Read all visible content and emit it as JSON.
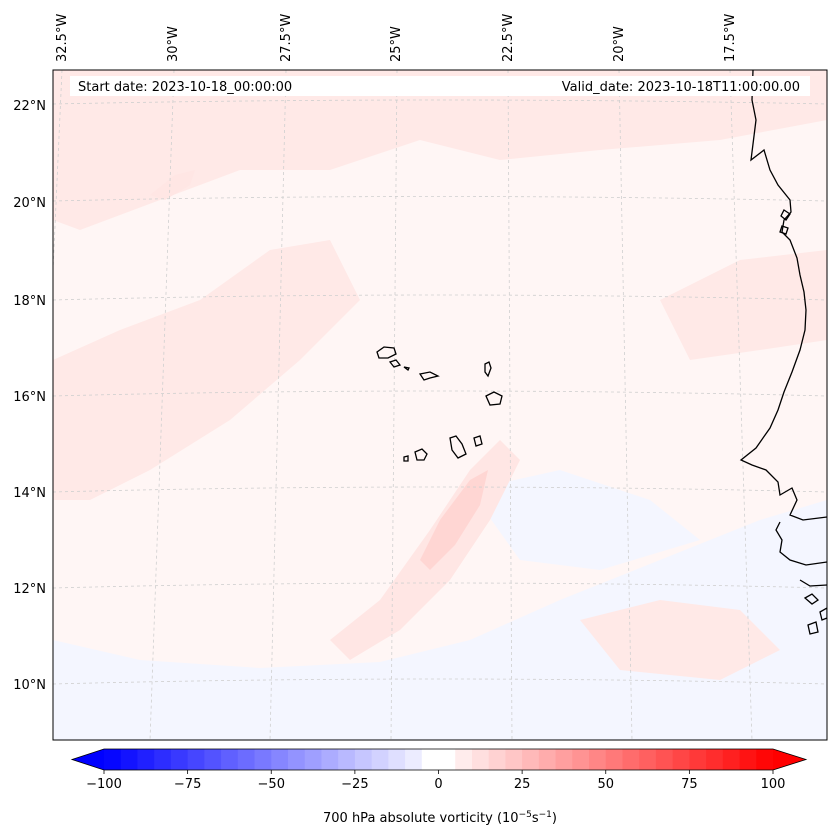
{
  "header": {
    "start_date": "Start date: 2023-10-18_00:00:00",
    "valid_date": "Valid_date: 2023-10-18T11:00:00.00"
  },
  "map": {
    "lon_labels": [
      "32.5°W",
      "30°W",
      "27.5°W",
      "25°W",
      "22.5°W",
      "20°W",
      "17.5°W"
    ],
    "lat_labels": [
      "22°N",
      "20°N",
      "18°N",
      "16°N",
      "14°N",
      "12°N",
      "10°N"
    ],
    "colors": {
      "field_light": "#fff4f3",
      "field_pink": "#ffe6e4",
      "field_mid": "#ffd6d3",
      "field_blue": "#f4f6ff",
      "coast": "#000000",
      "grid": "#cfcfcf"
    }
  },
  "colorbar": {
    "ticks": [
      "−100",
      "−75",
      "−50",
      "−25",
      "0",
      "25",
      "50",
      "75",
      "100"
    ],
    "label_prefix": "700 hPa absolute vorticity (10",
    "label_exp1": "−5",
    "label_mid": "s",
    "label_exp2": "−1",
    "label_suffix": ")",
    "min_color": "#0000ff",
    "zero_color": "#ffffff",
    "max_color": "#ff0000"
  }
}
